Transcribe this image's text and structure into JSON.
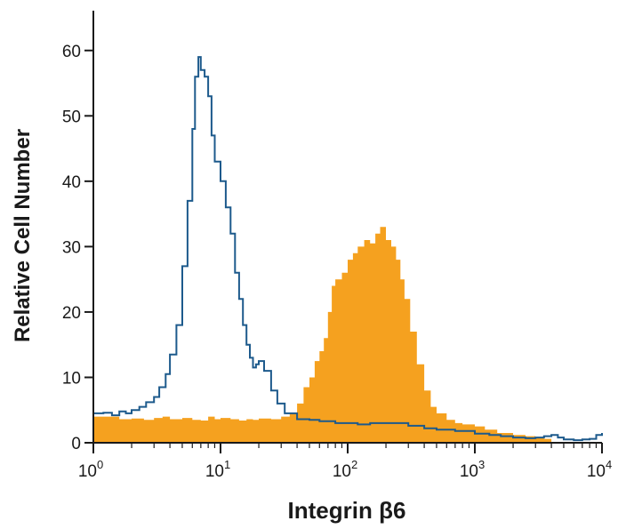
{
  "chart_data": {
    "type": "histogram",
    "xlabel": "Integrin β6",
    "ylabel": "Relative Cell Number",
    "xscale": "log",
    "xlim": [
      1,
      10000
    ],
    "ylim": [
      0,
      65
    ],
    "yticks": [
      0,
      10,
      20,
      30,
      40,
      50,
      60
    ],
    "xticks": [
      {
        "value": 1,
        "base": "10",
        "exp": "0"
      },
      {
        "value": 10,
        "base": "10",
        "exp": "1"
      },
      {
        "value": 100,
        "base": "10",
        "exp": "2"
      },
      {
        "value": 1000,
        "base": "10",
        "exp": "3"
      },
      {
        "value": 10000,
        "base": "10",
        "exp": "4"
      }
    ],
    "grid": false,
    "legend": "none",
    "series": [
      {
        "style": "filled",
        "color": "#f5a11f",
        "points": [
          [
            1,
            4
          ],
          [
            1.3,
            4
          ],
          [
            1.6,
            3.6
          ],
          [
            2,
            3.7
          ],
          [
            2.5,
            3.5
          ],
          [
            3,
            3.8
          ],
          [
            3.5,
            4
          ],
          [
            4,
            3.6
          ],
          [
            5,
            3.8
          ],
          [
            6,
            3.5
          ],
          [
            7,
            3.4
          ],
          [
            8,
            4
          ],
          [
            9,
            3.6
          ],
          [
            10,
            3.8
          ],
          [
            12,
            3.6
          ],
          [
            14,
            3.4
          ],
          [
            16,
            3.6
          ],
          [
            18,
            3.5
          ],
          [
            20,
            3.7
          ],
          [
            25,
            3.6
          ],
          [
            30,
            4
          ],
          [
            35,
            4.5
          ],
          [
            40,
            6
          ],
          [
            45,
            8.5
          ],
          [
            50,
            10
          ],
          [
            55,
            12.5
          ],
          [
            60,
            14
          ],
          [
            65,
            16
          ],
          [
            70,
            20
          ],
          [
            75,
            24
          ],
          [
            80,
            25
          ],
          [
            90,
            26
          ],
          [
            100,
            28
          ],
          [
            110,
            29
          ],
          [
            120,
            30
          ],
          [
            135,
            31
          ],
          [
            150,
            30.5
          ],
          [
            165,
            32
          ],
          [
            180,
            33
          ],
          [
            200,
            31
          ],
          [
            220,
            30
          ],
          [
            240,
            28
          ],
          [
            260,
            25
          ],
          [
            280,
            22
          ],
          [
            310,
            17
          ],
          [
            350,
            12
          ],
          [
            400,
            8
          ],
          [
            450,
            5.5
          ],
          [
            500,
            4.5
          ],
          [
            600,
            3.5
          ],
          [
            700,
            3
          ],
          [
            800,
            2.8
          ],
          [
            1000,
            2.5
          ],
          [
            1200,
            2
          ],
          [
            1500,
            1.5
          ],
          [
            2000,
            1.2
          ],
          [
            2500,
            1
          ],
          [
            3000,
            0.9
          ],
          [
            3500,
            0.6
          ],
          [
            4000,
            0
          ]
        ]
      },
      {
        "style": "outline",
        "color": "#1d5a8c",
        "points": [
          [
            1,
            4.5
          ],
          [
            1.2,
            4.6
          ],
          [
            1.4,
            4.2
          ],
          [
            1.6,
            4.8
          ],
          [
            1.8,
            4.5
          ],
          [
            2,
            5
          ],
          [
            2.3,
            5.5
          ],
          [
            2.6,
            6.2
          ],
          [
            3,
            7
          ],
          [
            3.3,
            8.5
          ],
          [
            3.7,
            10.5
          ],
          [
            4,
            13.5
          ],
          [
            4.5,
            18
          ],
          [
            5,
            27
          ],
          [
            5.5,
            37
          ],
          [
            6,
            48
          ],
          [
            6.3,
            56
          ],
          [
            6.7,
            59
          ],
          [
            7,
            57
          ],
          [
            7.5,
            56
          ],
          [
            8,
            53
          ],
          [
            8.5,
            47
          ],
          [
            9,
            43
          ],
          [
            10,
            40
          ],
          [
            11,
            36
          ],
          [
            12,
            32
          ],
          [
            13,
            26
          ],
          [
            14,
            22
          ],
          [
            15,
            18
          ],
          [
            16,
            15
          ],
          [
            17,
            13
          ],
          [
            18,
            11.5
          ],
          [
            19,
            12
          ],
          [
            20,
            12.5
          ],
          [
            22,
            11
          ],
          [
            25,
            8
          ],
          [
            28,
            6
          ],
          [
            32,
            4.5
          ],
          [
            40,
            3.6
          ],
          [
            50,
            3.5
          ],
          [
            60,
            3.3
          ],
          [
            80,
            3
          ],
          [
            100,
            3
          ],
          [
            120,
            2.8
          ],
          [
            150,
            3
          ],
          [
            200,
            3
          ],
          [
            300,
            2.6
          ],
          [
            400,
            2.2
          ],
          [
            500,
            2
          ],
          [
            700,
            1.8
          ],
          [
            1000,
            1.4
          ],
          [
            1300,
            1.2
          ],
          [
            1600,
            1
          ],
          [
            2000,
            0.8
          ],
          [
            2500,
            0.7
          ],
          [
            3000,
            0.8
          ],
          [
            3500,
            1
          ],
          [
            4000,
            1.2
          ],
          [
            4500,
            0.8
          ],
          [
            5000,
            0.5
          ],
          [
            6000,
            0.4
          ],
          [
            7000,
            0.5
          ],
          [
            8000,
            0.6
          ],
          [
            9000,
            1.2
          ],
          [
            10000,
            1.5
          ]
        ]
      }
    ]
  }
}
